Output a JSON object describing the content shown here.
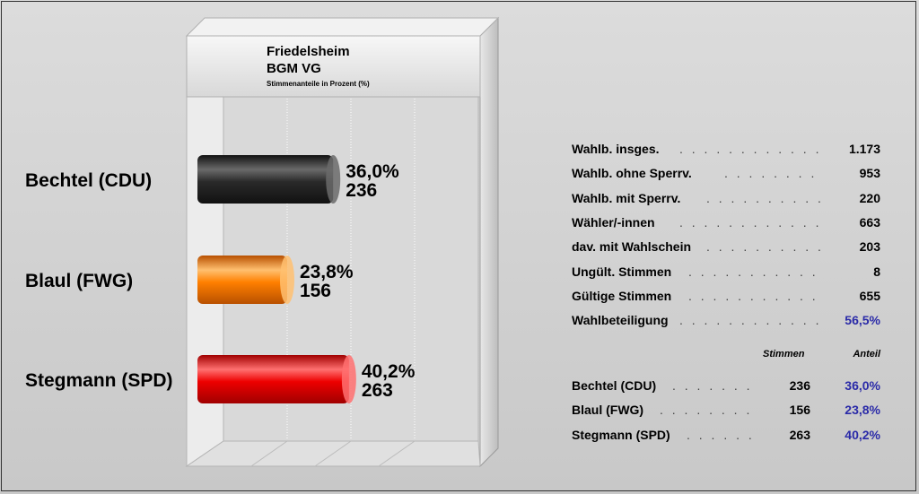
{
  "chart_data": {
    "type": "bar",
    "orientation": "horizontal",
    "title": "Friedelsheim",
    "subtitle": "BGM VG",
    "caption": "Stimmenanteile in Prozent (%)",
    "xlim": [
      0,
      100
    ],
    "categories": [
      "Bechtel (CDU)",
      "Blaul (FWG)",
      "Stegmann (SPD)"
    ],
    "values": [
      36.0,
      23.8,
      40.2
    ],
    "value_labels": [
      "36,0%",
      "23,8%",
      "40,2%"
    ],
    "votes": [
      "236",
      "156",
      "263"
    ],
    "colors": [
      "#2a2a2a",
      "#ff8000",
      "#ee0000"
    ],
    "grid": true
  },
  "stats": [
    {
      "label": "Wahlb. insges.",
      "value": "1.173"
    },
    {
      "label": "Wahlb. ohne Sperrv.",
      "value": "953"
    },
    {
      "label": "Wahlb. mit Sperrv.",
      "value": "220"
    },
    {
      "label": "Wähler/-innen",
      "value": "663"
    },
    {
      "label": "dav. mit Wahlschein",
      "value": "203"
    },
    {
      "label": "Ungült. Stimmen",
      "value": "8"
    },
    {
      "label": "Gültige Stimmen",
      "value": "655"
    },
    {
      "label": "Wahlbeteiligung",
      "value": "56,5%"
    }
  ],
  "results_header": {
    "votes": "Stimmen",
    "share": "Anteil"
  },
  "results": [
    {
      "name": "Bechtel (CDU)",
      "votes": "236",
      "share": "36,0%"
    },
    {
      "name": "Blaul (FWG)",
      "votes": "156",
      "share": "23,8%"
    },
    {
      "name": "Stegmann (SPD)",
      "votes": "263",
      "share": "40,2%"
    }
  ]
}
